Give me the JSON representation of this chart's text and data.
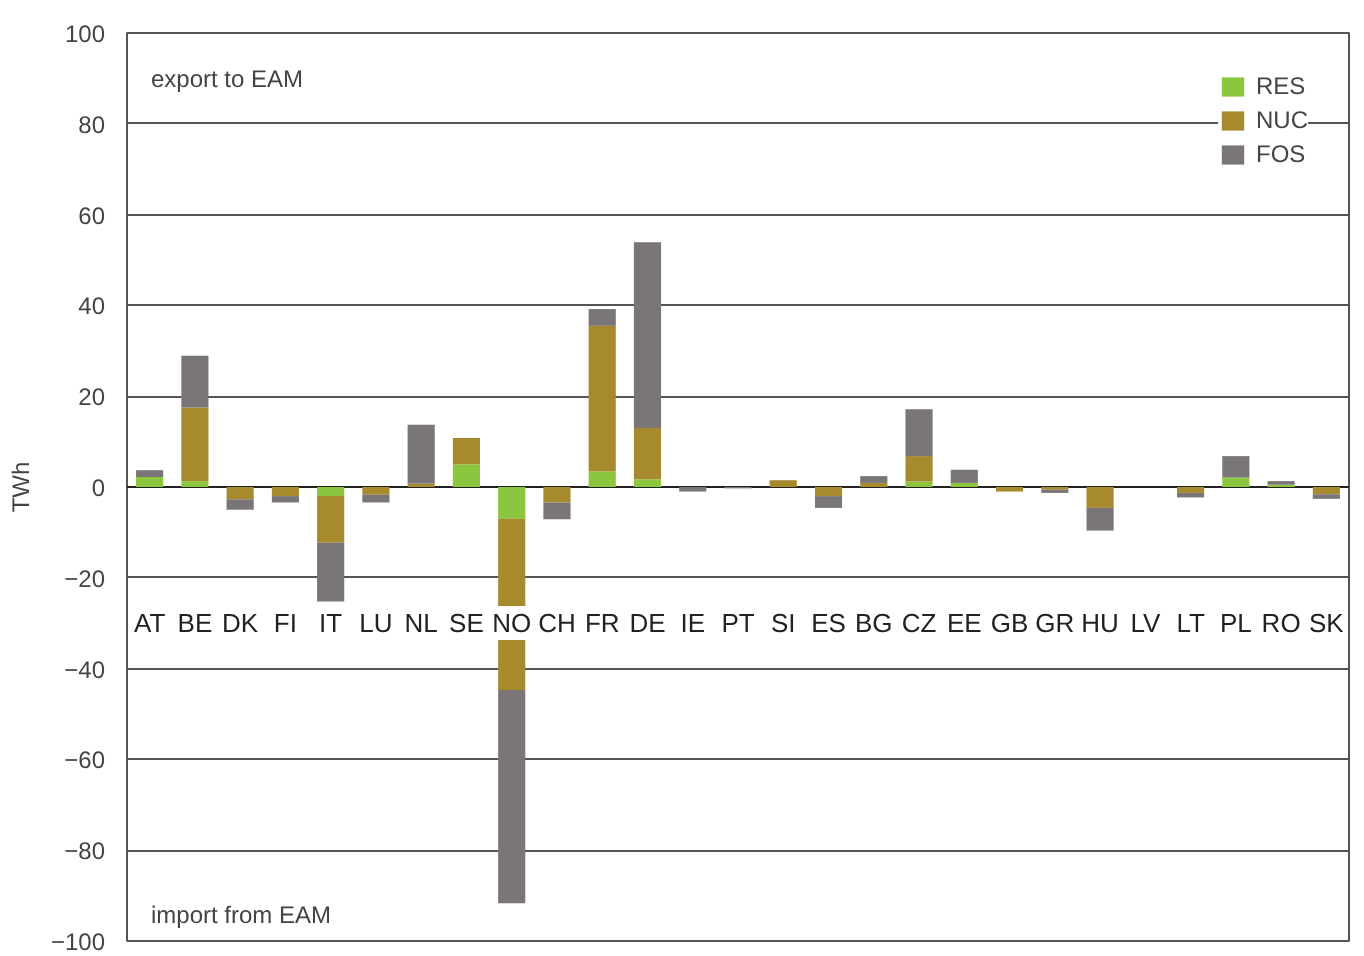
{
  "chart_data": {
    "type": "bar",
    "stacked": true,
    "ylabel": "TWh",
    "ylim": [
      -100,
      100
    ],
    "yticks": [
      -100,
      -80,
      -60,
      -40,
      -20,
      0,
      20,
      40,
      60,
      80,
      100
    ],
    "grid": "y",
    "legend": "top right",
    "annotations": [
      "export to EAM",
      "import from EAM"
    ],
    "categories": [
      "AT",
      "BE",
      "DK",
      "FI",
      "IT",
      "LU",
      "NL",
      "SE",
      "NO",
      "CH",
      "FR",
      "DE",
      "IE",
      "PT",
      "SI",
      "ES",
      "BG",
      "CZ",
      "EE",
      "GB",
      "GR",
      "HU",
      "LV",
      "LT",
      "PL",
      "RO",
      "SK"
    ],
    "series": [
      {
        "name": "RES",
        "color": "#8cc63f",
        "values": [
          2.2,
          1.3,
          null,
          null,
          -2,
          null,
          null,
          5,
          -7,
          null,
          3.4,
          1.7,
          null,
          null,
          null,
          null,
          null,
          1.2,
          0.9,
          null,
          null,
          null,
          null,
          null,
          2.1,
          0.5,
          null
        ]
      },
      {
        "name": "NUC",
        "color": "#a88a2e",
        "values": [
          null,
          16.2,
          -2.7,
          -2,
          -10.3,
          -1.7,
          0.7,
          5.8,
          -37.7,
          -3.4,
          32.1,
          11.3,
          null,
          null,
          1.5,
          -2,
          0.9,
          5.6,
          null,
          -1,
          -0.6,
          -4.6,
          null,
          -1.3,
          null,
          null,
          -1.6
        ]
      },
      {
        "name": "FOS",
        "color": "#7a7677",
        "values": [
          1.5,
          11.4,
          -2.3,
          -1.4,
          -12.9,
          -1.7,
          13,
          null,
          -47,
          -3.7,
          3.7,
          40.9,
          -1,
          -0.3,
          null,
          -2.6,
          1.5,
          10.3,
          2.9,
          null,
          -0.7,
          -5,
          null,
          -1,
          4.7,
          0.8,
          -1
        ]
      }
    ]
  }
}
